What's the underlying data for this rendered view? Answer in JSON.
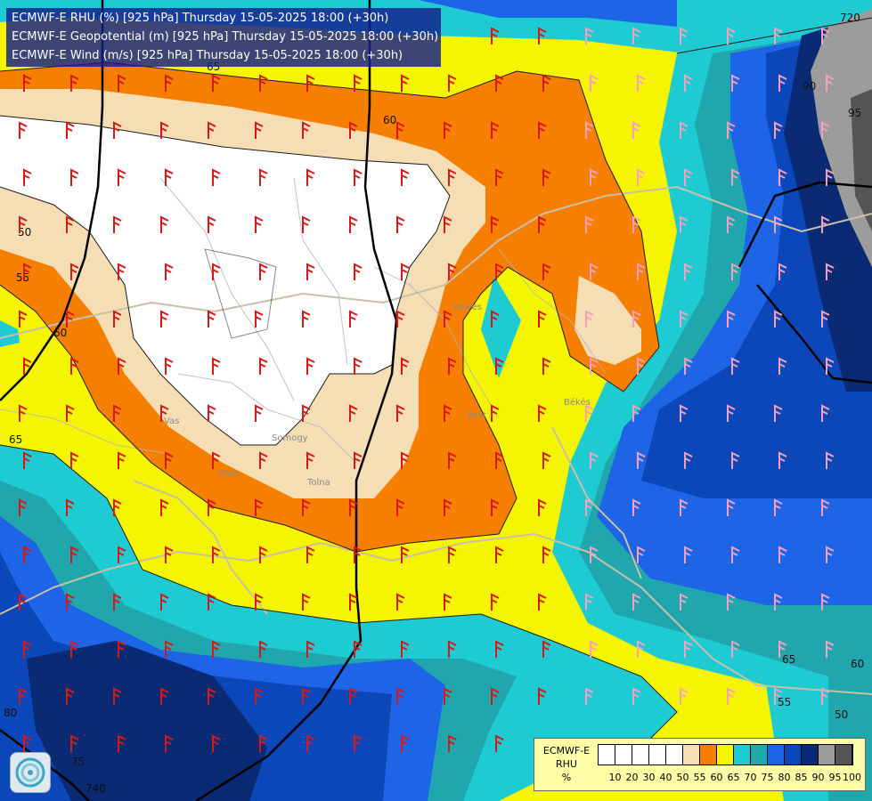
{
  "title_lines": [
    "ECMWF-E RHU (%) [925 hPa] Thursday 15-05-2025 18:00 (+30h)",
    "ECMWF-E Geopotential (m) [925 hPa] Thursday 15-05-2025 18:00 (+30h)",
    "ECMWF-E Wind (m/s) [925 hPa] Thursday 15-05-2025 18:00 (+30h)"
  ],
  "legend": {
    "label": "ECMWF-E RHU %",
    "label_lines": [
      "ECMWF-E",
      "RHU",
      "%"
    ],
    "levels": [
      "10",
      "20",
      "30",
      "40",
      "50",
      "55",
      "60",
      "65",
      "70",
      "75",
      "80",
      "85",
      "90",
      "95",
      "100"
    ],
    "colors": [
      "#ffffff",
      "#ffffff",
      "#ffffff",
      "#ffffff",
      "#ffffff",
      "#f5deb3",
      "#f77f00",
      "#f5f500",
      "#1ecbd2",
      "#20a6ad",
      "#1e64e6",
      "#0b47b8",
      "#0a2a73",
      "#9c9c9c",
      "#555555"
    ]
  },
  "contour_labels": [
    "60",
    "50",
    "55",
    "60",
    "65",
    "65",
    "60",
    "55",
    "50",
    "90",
    "95",
    "720",
    "740",
    "80",
    "75",
    "65"
  ],
  "place_labels": [
    "Vas",
    "Somogy",
    "Zala",
    "Tolna",
    "Pest",
    "Békés",
    "Heves"
  ],
  "colors": {
    "rhu_below_55": "#ffffff",
    "rhu_55_60": "#f5deb3",
    "rhu_60_65": "#f77f00",
    "rhu_65_70": "#f5f500",
    "rhu_70_75": "#1ecbd2",
    "rhu_75_80": "#20a6ad",
    "rhu_80_85": "#1e64e6",
    "rhu_85_90": "#0b47b8",
    "rhu_90_95": "#0a2a73",
    "rhu_95_100": "#9c9c9c",
    "rhu_100": "#555555",
    "geopotential_contour": "#000000",
    "wind_barb_warm": "#d81818",
    "wind_barb_cool": "#f5a0c0"
  }
}
